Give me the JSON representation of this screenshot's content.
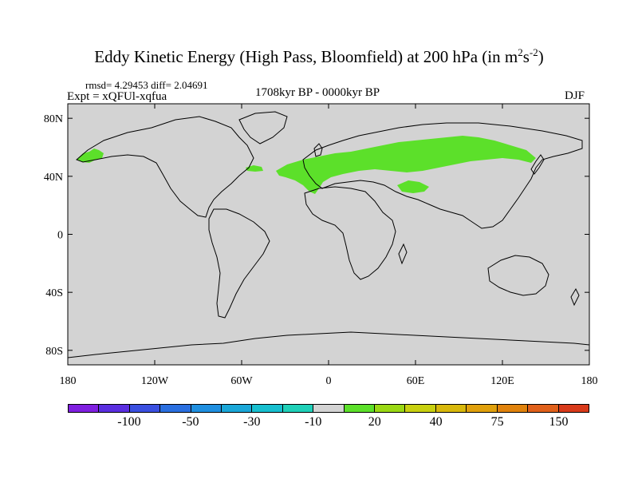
{
  "title": {
    "main": "Eddy Kinetic Energy (High Pass, Bloomfield) at 200 hPa (in m",
    "sup1": "2",
    "mid": "s",
    "sup2": "-2",
    "end": ")"
  },
  "stats": "rmsd= 4.29453 diff= 2.04691",
  "experiment": "Expt = xQFUl-xqfua",
  "period": "1708kyr BP - 0000kyr BP",
  "season": "DJF",
  "colors": {
    "land_background": "#d3d3d3",
    "positive_anomaly": "#5ce02a"
  },
  "map": {
    "lat_ticks": [
      {
        "value": 80,
        "label": "80N"
      },
      {
        "value": 40,
        "label": "40N"
      },
      {
        "value": 0,
        "label": "0"
      },
      {
        "value": -40,
        "label": "40S"
      },
      {
        "value": -80,
        "label": "80S"
      }
    ],
    "lon_ticks": [
      {
        "value": -180,
        "label": "180"
      },
      {
        "value": -120,
        "label": "120W"
      },
      {
        "value": -60,
        "label": "60W"
      },
      {
        "value": 0,
        "label": "0"
      },
      {
        "value": 60,
        "label": "60E"
      },
      {
        "value": 120,
        "label": "120E"
      },
      {
        "value": 180,
        "label": "180"
      }
    ],
    "lat_range": [
      -90,
      90
    ],
    "lon_range": [
      -180,
      180
    ]
  },
  "colorbar": {
    "colors": [
      "#7f1fe0",
      "#5a2ee0",
      "#3a4fe0",
      "#2a6fe0",
      "#1f8fe0",
      "#1aa7d8",
      "#17bfcf",
      "#1fd0b8",
      "#d3d3d3",
      "#5ce02a",
      "#9ad814",
      "#c8d010",
      "#d8b80c",
      "#e0a00c",
      "#e0820c",
      "#e0601a",
      "#d83a1a"
    ],
    "labels": [
      "-100",
      "-50",
      "-30",
      "-10",
      "20",
      "40",
      "75",
      "150"
    ]
  }
}
